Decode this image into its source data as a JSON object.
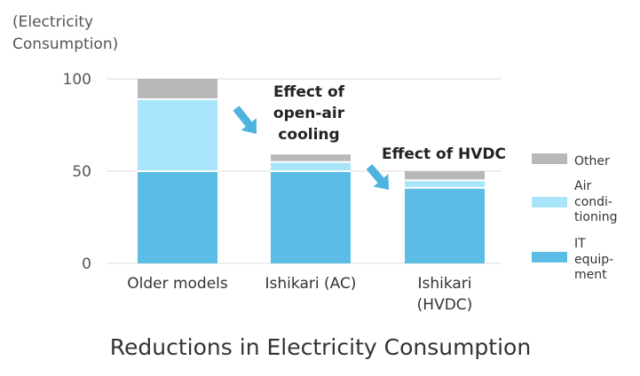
{
  "chart_data": {
    "type": "bar",
    "stacked": true,
    "title": "Reductions in Electricity Consumption",
    "ylabel_lines": [
      "(Electricity",
      "Consumption)"
    ],
    "xlabel": "",
    "ylim": [
      0,
      100
    ],
    "yticks": [
      "0",
      "50",
      "100"
    ],
    "categories": [
      [
        "Older models"
      ],
      [
        "Ishikari (AC)"
      ],
      [
        "Ishikari",
        "(HVDC)"
      ]
    ],
    "series": [
      {
        "name_lines": [
          "IT",
          "equip-",
          "ment"
        ],
        "color": "#5bbde6",
        "values": [
          50,
          50,
          41
        ]
      },
      {
        "name_lines": [
          "Air",
          "condi-",
          "tioning"
        ],
        "color": "#a8e5fb",
        "values": [
          39,
          5,
          4
        ]
      },
      {
        "name_lines": [
          "Other"
        ],
        "color": "#b8b8b8",
        "values": [
          11,
          4,
          5
        ]
      }
    ],
    "annotations": [
      {
        "lines": [
          "Effect of",
          "open-air",
          "cooling"
        ]
      },
      {
        "lines": [
          "Effect of HVDC"
        ]
      }
    ],
    "arrow_color": "#4fb3e0",
    "legend_position": "right",
    "grid": true
  }
}
